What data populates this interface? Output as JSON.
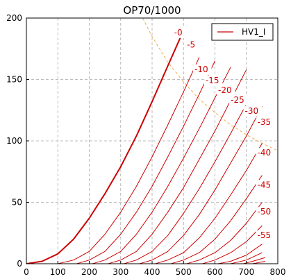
{
  "chart_data": {
    "type": "line",
    "title": "OP70/1000",
    "xlabel": "",
    "ylabel": "",
    "xlim": [
      0,
      800
    ],
    "ylim": [
      0,
      200
    ],
    "xticks": [
      0,
      100,
      200,
      300,
      400,
      500,
      600,
      700,
      800
    ],
    "yticks": [
      0,
      50,
      100,
      150,
      200
    ],
    "grid": true,
    "legend": {
      "placement": "top-right",
      "entries": [
        "HV1_I"
      ]
    },
    "series_color": "#cc0000",
    "load_line_color": "#f0b050",
    "anode_dissipation_curve": {
      "style": "dashed",
      "x": [
        370,
        400,
        450,
        500,
        550,
        600,
        650,
        700,
        750,
        800
      ],
      "y": [
        200,
        185,
        164,
        148,
        134,
        123,
        113,
        105,
        98,
        92
      ]
    },
    "series": [
      {
        "name": "HV1_I",
        "grid_voltage_label": "-0",
        "x": [
          0,
          50,
          100,
          150,
          200,
          250,
          300,
          350,
          400,
          450,
          500
        ],
        "y": [
          0,
          2,
          8,
          20,
          37,
          57,
          79,
          104,
          132,
          161,
          190
        ]
      },
      {
        "grid_voltage_label": "-5",
        "x": [
          100,
          150,
          200,
          250,
          300,
          350,
          400,
          450,
          500,
          550
        ],
        "y": [
          0,
          3,
          10,
          24,
          42,
          63,
          87,
          113,
          140,
          168
        ]
      },
      {
        "grid_voltage_label": "-10",
        "x": [
          160,
          200,
          250,
          300,
          350,
          400,
          450,
          500,
          550,
          600
        ],
        "y": [
          0,
          3,
          10,
          24,
          42,
          63,
          87,
          112,
          138,
          165
        ]
      },
      {
        "grid_voltage_label": "-15",
        "x": [
          210,
          250,
          300,
          350,
          400,
          450,
          500,
          550,
          600,
          650
        ],
        "y": [
          0,
          3,
          10,
          24,
          42,
          63,
          86,
          110,
          135,
          160
        ]
      },
      {
        "grid_voltage_label": "-20",
        "x": [
          260,
          300,
          350,
          400,
          450,
          500,
          550,
          600,
          650,
          700
        ],
        "y": [
          0,
          3,
          10,
          24,
          42,
          62,
          85,
          108,
          133,
          158
        ]
      },
      {
        "grid_voltage_label": "-25",
        "x": [
          310,
          350,
          400,
          450,
          500,
          550,
          600,
          650,
          700
        ],
        "y": [
          0,
          3,
          10,
          23,
          41,
          61,
          83,
          106,
          130
        ]
      },
      {
        "grid_voltage_label": "-30",
        "x": [
          360,
          400,
          450,
          500,
          550,
          600,
          650,
          700,
          750
        ],
        "y": [
          0,
          3,
          10,
          23,
          40,
          60,
          82,
          104,
          128
        ]
      },
      {
        "grid_voltage_label": "-35",
        "x": [
          410,
          450,
          500,
          550,
          600,
          650,
          700,
          750
        ],
        "y": [
          0,
          3,
          9,
          21,
          37,
          56,
          76,
          98
        ]
      },
      {
        "grid_voltage_label": "-40",
        "x": [
          460,
          500,
          550,
          600,
          650,
          700,
          750
        ],
        "y": [
          0,
          3,
          9,
          20,
          35,
          53,
          72
        ]
      },
      {
        "grid_voltage_label": "-45",
        "x": [
          510,
          550,
          600,
          650,
          700,
          750
        ],
        "y": [
          0,
          3,
          9,
          19,
          33,
          50
        ]
      },
      {
        "grid_voltage_label": "-50",
        "x": [
          560,
          600,
          650,
          700,
          750
        ],
        "y": [
          0,
          3,
          9,
          18,
          31
        ]
      },
      {
        "grid_voltage_label": "-55",
        "x": [
          610,
          650,
          700,
          750
        ],
        "y": [
          0,
          2,
          7,
          16
        ]
      },
      {
        "grid_voltage_label": "",
        "x": [
          650,
          700,
          750
        ],
        "y": [
          0,
          3,
          9
        ]
      },
      {
        "grid_voltage_label": "",
        "x": [
          690,
          720,
          760
        ],
        "y": [
          0,
          2,
          5
        ]
      },
      {
        "grid_voltage_label": "",
        "x": [
          720,
          760
        ],
        "y": [
          0,
          2
        ]
      }
    ],
    "curve_labels": [
      {
        "text": "-0",
        "x": 470,
        "y": 186
      },
      {
        "text": "-5",
        "x": 511,
        "y": 176
      },
      {
        "text": "-10",
        "x": 535,
        "y": 156
      },
      {
        "text": "-15",
        "x": 570,
        "y": 147
      },
      {
        "text": "-20",
        "x": 610,
        "y": 139
      },
      {
        "text": "-25",
        "x": 650,
        "y": 131
      },
      {
        "text": "-30",
        "x": 695,
        "y": 122
      },
      {
        "text": "-35",
        "x": 735,
        "y": 113
      },
      {
        "text": "-40",
        "x": 735,
        "y": 88
      },
      {
        "text": "-45",
        "x": 735,
        "y": 62
      },
      {
        "text": "-50",
        "x": 735,
        "y": 40
      },
      {
        "text": "-55",
        "x": 735,
        "y": 21
      }
    ]
  }
}
